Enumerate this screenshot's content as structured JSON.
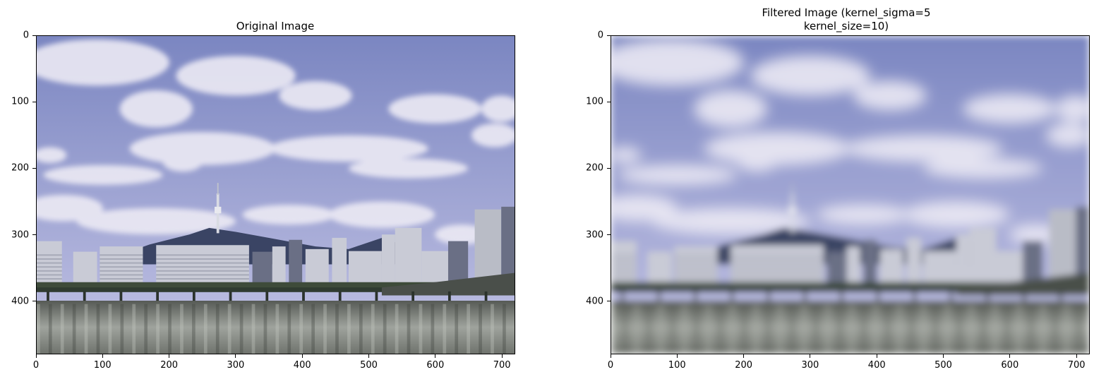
{
  "figure": {
    "panels": [
      {
        "title": "Original Image",
        "image": "photo-seoul-han-river-skyline",
        "blurred": false,
        "x_ticks": [
          "0",
          "100",
          "200",
          "300",
          "400",
          "500",
          "600",
          "700"
        ],
        "y_ticks": [
          "0",
          "100",
          "200",
          "300",
          "400"
        ],
        "x_range": [
          0,
          720
        ],
        "y_range": [
          0,
          480
        ]
      },
      {
        "title": "Filtered Image (kernel_sigma=5\nkernel_size=10)",
        "image": "photo-seoul-han-river-skyline-blurred",
        "blurred": true,
        "x_ticks": [
          "0",
          "100",
          "200",
          "300",
          "400",
          "500",
          "600",
          "700"
        ],
        "y_ticks": [
          "0",
          "100",
          "200",
          "300",
          "400"
        ],
        "x_range": [
          0,
          720
        ],
        "y_range": [
          0,
          480
        ]
      }
    ]
  },
  "colors": {
    "sky_top": "#7b86c1",
    "sky_mid": "#b7b9df",
    "cloud": "#eceaf4",
    "mountain": "#3a4464",
    "building_light": "#c9cbd6",
    "building_dark": "#6a6f85",
    "bridge": "#2f3a30",
    "water_top": "#565a55",
    "water_bottom": "#9fa39d"
  }
}
